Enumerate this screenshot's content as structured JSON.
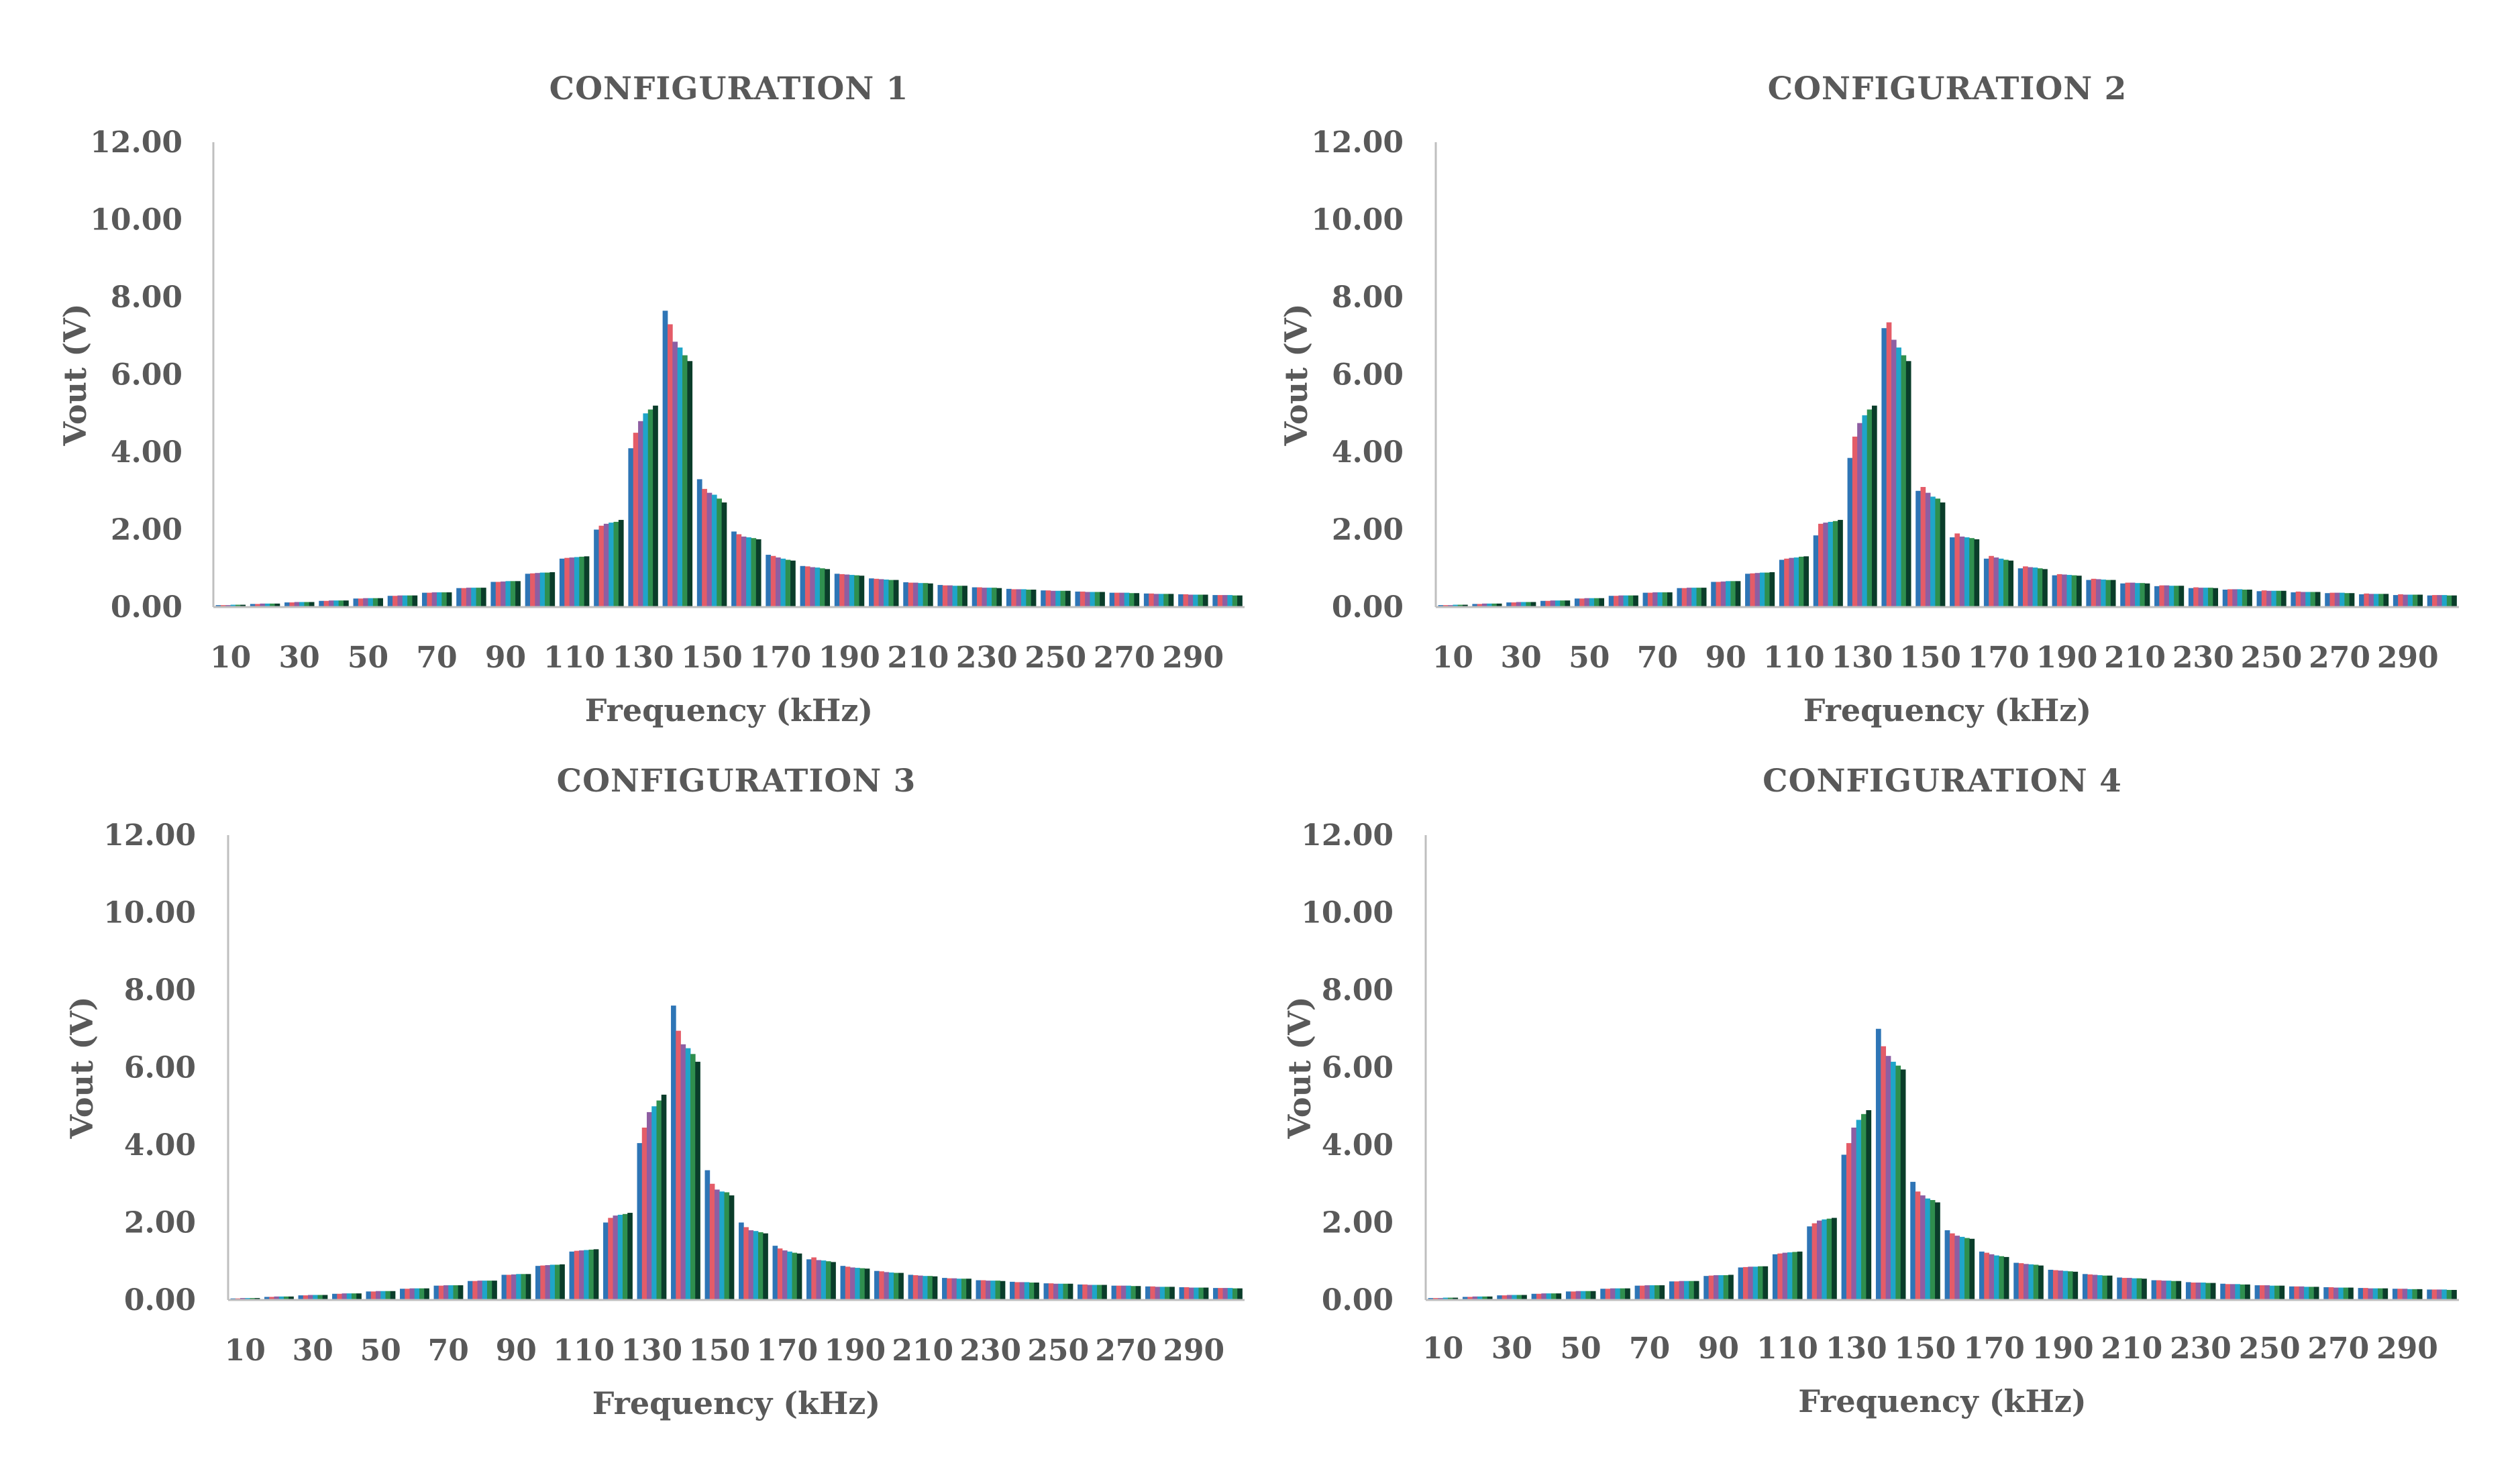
{
  "series_colors": [
    "#2E75B6",
    "#E45C68",
    "#8E5EA2",
    "#1FA5C9",
    "#2F8F4E",
    "#0A3D2A"
  ],
  "chart_data": [
    {
      "type": "bar",
      "title": "CONFIGURATION 1",
      "xlabel": "Frequency (kHz)",
      "ylabel": "Vout (V)",
      "ylim": [
        0,
        12
      ],
      "yticks": [
        "0.00",
        "2.00",
        "4.00",
        "6.00",
        "8.00",
        "10.00",
        "12.00"
      ],
      "categories": [
        10,
        20,
        30,
        40,
        50,
        60,
        70,
        80,
        90,
        100,
        110,
        120,
        130,
        140,
        150,
        160,
        170,
        180,
        190,
        200,
        210,
        220,
        230,
        240,
        250,
        260,
        270,
        280,
        290,
        300
      ],
      "xtick_labels": [
        "10",
        "30",
        "50",
        "70",
        "90",
        "110",
        "130",
        "150",
        "170",
        "190",
        "210",
        "230",
        "250",
        "270",
        "290"
      ],
      "group_values": [
        [
          0.05,
          0.05,
          0.05,
          0.06,
          0.06,
          0.06
        ],
        [
          0.08,
          0.08,
          0.09,
          0.09,
          0.09,
          0.09
        ],
        [
          0.12,
          0.12,
          0.13,
          0.13,
          0.13,
          0.13
        ],
        [
          0.16,
          0.16,
          0.17,
          0.17,
          0.17,
          0.17
        ],
        [
          0.22,
          0.22,
          0.23,
          0.23,
          0.23,
          0.23
        ],
        [
          0.29,
          0.29,
          0.3,
          0.3,
          0.3,
          0.3
        ],
        [
          0.37,
          0.37,
          0.38,
          0.38,
          0.38,
          0.38
        ],
        [
          0.49,
          0.49,
          0.5,
          0.5,
          0.5,
          0.5
        ],
        [
          0.65,
          0.65,
          0.66,
          0.67,
          0.67,
          0.67
        ],
        [
          0.86,
          0.87,
          0.88,
          0.89,
          0.89,
          0.9
        ],
        [
          1.25,
          1.27,
          1.28,
          1.29,
          1.3,
          1.31
        ],
        [
          2.0,
          2.1,
          2.15,
          2.18,
          2.2,
          2.25
        ],
        [
          4.1,
          4.5,
          4.8,
          5.0,
          5.1,
          5.2
        ],
        [
          7.65,
          7.3,
          6.85,
          6.7,
          6.5,
          6.35
        ],
        [
          3.3,
          3.05,
          2.95,
          2.9,
          2.8,
          2.7
        ],
        [
          1.95,
          1.88,
          1.82,
          1.8,
          1.78,
          1.75
        ],
        [
          1.35,
          1.32,
          1.28,
          1.25,
          1.22,
          1.2
        ],
        [
          1.06,
          1.05,
          1.03,
          1.02,
          1.0,
          0.98
        ],
        [
          0.86,
          0.85,
          0.84,
          0.83,
          0.82,
          0.81
        ],
        [
          0.74,
          0.73,
          0.72,
          0.71,
          0.7,
          0.7
        ],
        [
          0.64,
          0.63,
          0.63,
          0.62,
          0.62,
          0.61
        ],
        [
          0.57,
          0.56,
          0.56,
          0.55,
          0.55,
          0.55
        ],
        [
          0.51,
          0.51,
          0.5,
          0.5,
          0.5,
          0.49
        ],
        [
          0.47,
          0.46,
          0.46,
          0.46,
          0.45,
          0.45
        ],
        [
          0.43,
          0.43,
          0.42,
          0.42,
          0.42,
          0.42
        ],
        [
          0.4,
          0.4,
          0.39,
          0.39,
          0.39,
          0.39
        ],
        [
          0.37,
          0.37,
          0.37,
          0.37,
          0.36,
          0.36
        ],
        [
          0.35,
          0.35,
          0.34,
          0.34,
          0.34,
          0.34
        ],
        [
          0.33,
          0.33,
          0.32,
          0.32,
          0.32,
          0.32
        ],
        [
          0.31,
          0.31,
          0.31,
          0.31,
          0.3,
          0.3
        ]
      ]
    },
    {
      "type": "bar",
      "title": "CONFIGURATION 2",
      "xlabel": "Frequency (kHz)",
      "ylabel": "Vout (V)",
      "ylim": [
        0,
        12
      ],
      "yticks": [
        "0.00",
        "2.00",
        "4.00",
        "6.00",
        "8.00",
        "10.00",
        "12.00"
      ],
      "categories": [
        10,
        20,
        30,
        40,
        50,
        60,
        70,
        80,
        90,
        100,
        110,
        120,
        130,
        140,
        150,
        160,
        170,
        180,
        190,
        200,
        210,
        220,
        230,
        240,
        250,
        260,
        270,
        280,
        290,
        300
      ],
      "xtick_labels": [
        "10",
        "30",
        "50",
        "70",
        "90",
        "110",
        "130",
        "150",
        "170",
        "190",
        "210",
        "230",
        "250",
        "270",
        "290"
      ],
      "group_values": [
        [
          0.05,
          0.05,
          0.05,
          0.06,
          0.06,
          0.06
        ],
        [
          0.08,
          0.08,
          0.09,
          0.09,
          0.09,
          0.09
        ],
        [
          0.12,
          0.12,
          0.13,
          0.13,
          0.13,
          0.13
        ],
        [
          0.16,
          0.16,
          0.17,
          0.17,
          0.17,
          0.17
        ],
        [
          0.22,
          0.22,
          0.23,
          0.23,
          0.23,
          0.23
        ],
        [
          0.29,
          0.29,
          0.3,
          0.3,
          0.3,
          0.3
        ],
        [
          0.37,
          0.37,
          0.38,
          0.38,
          0.38,
          0.38
        ],
        [
          0.49,
          0.49,
          0.5,
          0.5,
          0.5,
          0.5
        ],
        [
          0.65,
          0.65,
          0.66,
          0.67,
          0.67,
          0.67
        ],
        [
          0.86,
          0.87,
          0.88,
          0.89,
          0.89,
          0.9
        ],
        [
          1.22,
          1.25,
          1.27,
          1.28,
          1.3,
          1.31
        ],
        [
          1.85,
          2.15,
          2.18,
          2.2,
          2.22,
          2.25
        ],
        [
          3.85,
          4.4,
          4.75,
          4.95,
          5.1,
          5.2
        ],
        [
          7.2,
          7.35,
          6.9,
          6.7,
          6.5,
          6.35
        ],
        [
          3.0,
          3.1,
          2.95,
          2.85,
          2.8,
          2.7
        ],
        [
          1.8,
          1.9,
          1.82,
          1.8,
          1.78,
          1.75
        ],
        [
          1.25,
          1.32,
          1.28,
          1.25,
          1.22,
          1.2
        ],
        [
          1.0,
          1.05,
          1.03,
          1.02,
          1.0,
          0.98
        ],
        [
          0.82,
          0.85,
          0.84,
          0.83,
          0.82,
          0.81
        ],
        [
          0.7,
          0.73,
          0.72,
          0.71,
          0.7,
          0.7
        ],
        [
          0.61,
          0.63,
          0.63,
          0.62,
          0.62,
          0.61
        ],
        [
          0.54,
          0.56,
          0.56,
          0.55,
          0.55,
          0.55
        ],
        [
          0.49,
          0.51,
          0.5,
          0.5,
          0.5,
          0.49
        ],
        [
          0.45,
          0.46,
          0.46,
          0.46,
          0.45,
          0.45
        ],
        [
          0.41,
          0.43,
          0.42,
          0.42,
          0.42,
          0.42
        ],
        [
          0.38,
          0.4,
          0.39,
          0.39,
          0.39,
          0.39
        ],
        [
          0.36,
          0.37,
          0.37,
          0.37,
          0.36,
          0.36
        ],
        [
          0.33,
          0.35,
          0.34,
          0.34,
          0.34,
          0.34
        ],
        [
          0.31,
          0.33,
          0.32,
          0.32,
          0.32,
          0.32
        ],
        [
          0.3,
          0.31,
          0.31,
          0.31,
          0.3,
          0.3
        ]
      ]
    },
    {
      "type": "bar",
      "title": "CONFIGURATION 3",
      "xlabel": "Frequency (kHz)",
      "ylabel": "Vout (V)",
      "ylim": [
        0,
        12
      ],
      "yticks": [
        "0.00",
        "2.00",
        "4.00",
        "6.00",
        "8.00",
        "10.00",
        "12.00"
      ],
      "categories": [
        10,
        20,
        30,
        40,
        50,
        60,
        70,
        80,
        90,
        100,
        110,
        120,
        130,
        140,
        150,
        160,
        170,
        180,
        190,
        200,
        210,
        220,
        230,
        240,
        250,
        260,
        270,
        280,
        290,
        300
      ],
      "xtick_labels": [
        "10",
        "30",
        "50",
        "70",
        "90",
        "110",
        "130",
        "150",
        "170",
        "190",
        "210",
        "230",
        "250",
        "270",
        "290"
      ],
      "group_values": [
        [
          0.04,
          0.04,
          0.05,
          0.05,
          0.05,
          0.05
        ],
        [
          0.08,
          0.08,
          0.09,
          0.09,
          0.09,
          0.09
        ],
        [
          0.12,
          0.12,
          0.13,
          0.13,
          0.13,
          0.13
        ],
        [
          0.16,
          0.16,
          0.17,
          0.17,
          0.17,
          0.17
        ],
        [
          0.22,
          0.22,
          0.23,
          0.23,
          0.23,
          0.23
        ],
        [
          0.29,
          0.29,
          0.3,
          0.3,
          0.3,
          0.3
        ],
        [
          0.37,
          0.37,
          0.38,
          0.38,
          0.38,
          0.38
        ],
        [
          0.49,
          0.49,
          0.5,
          0.5,
          0.5,
          0.5
        ],
        [
          0.65,
          0.65,
          0.66,
          0.67,
          0.67,
          0.67
        ],
        [
          0.88,
          0.89,
          0.9,
          0.91,
          0.91,
          0.92
        ],
        [
          1.25,
          1.27,
          1.28,
          1.29,
          1.3,
          1.31
        ],
        [
          2.0,
          2.12,
          2.18,
          2.2,
          2.22,
          2.25
        ],
        [
          4.05,
          4.45,
          4.85,
          5.0,
          5.15,
          5.3
        ],
        [
          7.6,
          6.95,
          6.6,
          6.5,
          6.35,
          6.15
        ],
        [
          3.35,
          3.0,
          2.85,
          2.8,
          2.78,
          2.7
        ],
        [
          2.0,
          1.88,
          1.8,
          1.78,
          1.75,
          1.72
        ],
        [
          1.4,
          1.33,
          1.28,
          1.25,
          1.22,
          1.2
        ],
        [
          1.05,
          1.1,
          1.03,
          1.02,
          1.0,
          0.98
        ],
        [
          0.88,
          0.86,
          0.84,
          0.83,
          0.82,
          0.81
        ],
        [
          0.75,
          0.74,
          0.72,
          0.71,
          0.7,
          0.7
        ],
        [
          0.65,
          0.64,
          0.63,
          0.62,
          0.62,
          0.61
        ],
        [
          0.57,
          0.56,
          0.56,
          0.55,
          0.55,
          0.55
        ],
        [
          0.51,
          0.51,
          0.5,
          0.5,
          0.5,
          0.49
        ],
        [
          0.47,
          0.46,
          0.46,
          0.46,
          0.45,
          0.45
        ],
        [
          0.43,
          0.43,
          0.42,
          0.42,
          0.42,
          0.42
        ],
        [
          0.4,
          0.4,
          0.39,
          0.39,
          0.39,
          0.39
        ],
        [
          0.37,
          0.37,
          0.37,
          0.37,
          0.36,
          0.36
        ],
        [
          0.35,
          0.35,
          0.34,
          0.34,
          0.34,
          0.34
        ],
        [
          0.33,
          0.33,
          0.32,
          0.32,
          0.32,
          0.32
        ],
        [
          0.31,
          0.31,
          0.31,
          0.31,
          0.3,
          0.3
        ]
      ]
    },
    {
      "type": "bar",
      "title": "CONFIGURATION 4",
      "xlabel": "Frequency (kHz)",
      "ylabel": "Vout (V)",
      "ylim": [
        0,
        12
      ],
      "yticks": [
        "0.00",
        "2.00",
        "4.00",
        "6.00",
        "8.00",
        "10.00",
        "12.00"
      ],
      "categories": [
        10,
        20,
        30,
        40,
        50,
        60,
        70,
        80,
        90,
        100,
        110,
        120,
        130,
        140,
        150,
        160,
        170,
        180,
        190,
        200,
        210,
        220,
        230,
        240,
        250,
        260,
        270,
        280,
        290,
        300
      ],
      "xtick_labels": [
        "10",
        "30",
        "50",
        "70",
        "90",
        "110",
        "130",
        "150",
        "170",
        "190",
        "210",
        "230",
        "250",
        "270",
        "290"
      ],
      "group_values": [
        [
          0.05,
          0.05,
          0.05,
          0.06,
          0.06,
          0.06
        ],
        [
          0.08,
          0.08,
          0.09,
          0.09,
          0.09,
          0.09
        ],
        [
          0.12,
          0.12,
          0.13,
          0.13,
          0.13,
          0.13
        ],
        [
          0.16,
          0.16,
          0.17,
          0.17,
          0.17,
          0.17
        ],
        [
          0.22,
          0.22,
          0.23,
          0.23,
          0.23,
          0.23
        ],
        [
          0.29,
          0.29,
          0.3,
          0.3,
          0.3,
          0.3
        ],
        [
          0.37,
          0.37,
          0.38,
          0.38,
          0.38,
          0.38
        ],
        [
          0.48,
          0.48,
          0.49,
          0.49,
          0.49,
          0.49
        ],
        [
          0.62,
          0.63,
          0.64,
          0.64,
          0.64,
          0.65
        ],
        [
          0.84,
          0.85,
          0.86,
          0.86,
          0.87,
          0.87
        ],
        [
          1.18,
          1.2,
          1.22,
          1.23,
          1.24,
          1.25
        ],
        [
          1.9,
          1.98,
          2.05,
          2.08,
          2.1,
          2.12
        ],
        [
          3.75,
          4.05,
          4.45,
          4.65,
          4.8,
          4.9
        ],
        [
          7.0,
          6.55,
          6.3,
          6.15,
          6.05,
          5.95
        ],
        [
          3.05,
          2.8,
          2.7,
          2.62,
          2.58,
          2.52
        ],
        [
          1.8,
          1.72,
          1.66,
          1.63,
          1.6,
          1.58
        ],
        [
          1.25,
          1.22,
          1.18,
          1.15,
          1.13,
          1.11
        ],
        [
          0.96,
          0.95,
          0.93,
          0.92,
          0.91,
          0.89
        ],
        [
          0.78,
          0.77,
          0.76,
          0.75,
          0.74,
          0.73
        ],
        [
          0.67,
          0.66,
          0.65,
          0.64,
          0.63,
          0.63
        ],
        [
          0.58,
          0.57,
          0.57,
          0.56,
          0.56,
          0.55
        ],
        [
          0.51,
          0.51,
          0.5,
          0.5,
          0.49,
          0.49
        ],
        [
          0.46,
          0.45,
          0.45,
          0.45,
          0.44,
          0.44
        ],
        [
          0.42,
          0.41,
          0.41,
          0.41,
          0.4,
          0.4
        ],
        [
          0.38,
          0.38,
          0.38,
          0.37,
          0.37,
          0.37
        ],
        [
          0.35,
          0.35,
          0.35,
          0.34,
          0.34,
          0.34
        ],
        [
          0.33,
          0.33,
          0.32,
          0.32,
          0.32,
          0.32
        ],
        [
          0.31,
          0.31,
          0.3,
          0.3,
          0.3,
          0.3
        ],
        [
          0.29,
          0.29,
          0.29,
          0.28,
          0.28,
          0.28
        ],
        [
          0.27,
          0.27,
          0.27,
          0.27,
          0.26,
          0.26
        ]
      ]
    }
  ]
}
